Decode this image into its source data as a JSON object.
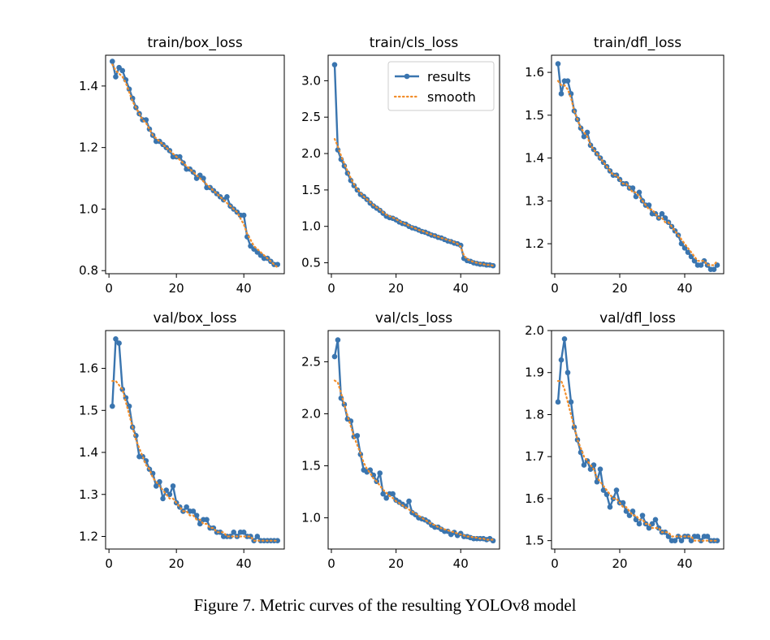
{
  "figure": {
    "caption": "Figure 7.  Metric curves of the resulting YOLOv8 model"
  },
  "colors": {
    "results": "#3a75af",
    "smooth": "#f28e2b",
    "axis": "#000000"
  },
  "legend": {
    "labels": [
      "results",
      "smooth"
    ],
    "location": "top-right",
    "panel": 1
  },
  "chart_data": [
    {
      "type": "line",
      "title": "train/box_loss",
      "xlim": [
        -1,
        52
      ],
      "ylim": [
        0.79,
        1.5
      ],
      "xticks": [
        0,
        20,
        40
      ],
      "yticks": [
        0.8,
        1.0,
        1.2,
        1.4
      ],
      "ytick_labels": [
        "0.8",
        "1.0",
        "1.2",
        "1.4"
      ],
      "x_start": 1,
      "series": [
        {
          "name": "results",
          "values": [
            1.48,
            1.43,
            1.46,
            1.45,
            1.42,
            1.39,
            1.36,
            1.33,
            1.31,
            1.29,
            1.29,
            1.26,
            1.24,
            1.22,
            1.22,
            1.21,
            1.2,
            1.19,
            1.17,
            1.17,
            1.17,
            1.15,
            1.13,
            1.13,
            1.12,
            1.1,
            1.11,
            1.1,
            1.07,
            1.07,
            1.06,
            1.05,
            1.04,
            1.03,
            1.04,
            1.01,
            1.0,
            0.99,
            0.98,
            0.98,
            0.91,
            0.88,
            0.87,
            0.86,
            0.85,
            0.84,
            0.84,
            0.83,
            0.82,
            0.82
          ]
        },
        {
          "name": "smooth",
          "values": [
            1.47,
            1.45,
            1.44,
            1.43,
            1.41,
            1.38,
            1.35,
            1.33,
            1.31,
            1.29,
            1.28,
            1.26,
            1.24,
            1.23,
            1.22,
            1.21,
            1.2,
            1.19,
            1.18,
            1.17,
            1.16,
            1.15,
            1.14,
            1.13,
            1.12,
            1.11,
            1.1,
            1.09,
            1.08,
            1.07,
            1.06,
            1.05,
            1.04,
            1.03,
            1.02,
            1.01,
            1.0,
            0.99,
            0.97,
            0.95,
            0.92,
            0.9,
            0.88,
            0.87,
            0.86,
            0.85,
            0.84,
            0.83,
            0.82,
            0.81
          ]
        }
      ]
    },
    {
      "type": "line",
      "title": "train/cls_loss",
      "xlim": [
        -1,
        52
      ],
      "ylim": [
        0.35,
        3.35
      ],
      "xticks": [
        0,
        20,
        40
      ],
      "yticks": [
        0.5,
        1.0,
        1.5,
        2.0,
        2.5,
        3.0
      ],
      "ytick_labels": [
        "0.5",
        "1.0",
        "1.5",
        "2.0",
        "2.5",
        "3.0"
      ],
      "x_start": 1,
      "series": [
        {
          "name": "results",
          "values": [
            3.22,
            2.05,
            1.92,
            1.83,
            1.73,
            1.63,
            1.56,
            1.5,
            1.44,
            1.41,
            1.37,
            1.32,
            1.28,
            1.25,
            1.22,
            1.18,
            1.14,
            1.12,
            1.11,
            1.09,
            1.06,
            1.04,
            1.03,
            1.0,
            0.98,
            0.97,
            0.95,
            0.93,
            0.92,
            0.9,
            0.88,
            0.87,
            0.85,
            0.84,
            0.82,
            0.8,
            0.79,
            0.77,
            0.76,
            0.74,
            0.56,
            0.53,
            0.52,
            0.5,
            0.49,
            0.48,
            0.48,
            0.47,
            0.47,
            0.46
          ]
        },
        {
          "name": "smooth",
          "values": [
            2.2,
            2.1,
            1.97,
            1.86,
            1.76,
            1.66,
            1.58,
            1.51,
            1.46,
            1.41,
            1.37,
            1.33,
            1.29,
            1.26,
            1.23,
            1.19,
            1.16,
            1.14,
            1.12,
            1.1,
            1.07,
            1.05,
            1.03,
            1.01,
            0.99,
            0.97,
            0.95,
            0.94,
            0.92,
            0.9,
            0.89,
            0.87,
            0.86,
            0.84,
            0.83,
            0.81,
            0.8,
            0.78,
            0.76,
            0.72,
            0.6,
            0.55,
            0.53,
            0.51,
            0.5,
            0.49,
            0.48,
            0.47,
            0.47,
            0.46
          ]
        }
      ]
    },
    {
      "type": "line",
      "title": "train/dfl_loss",
      "xlim": [
        -1,
        52
      ],
      "ylim": [
        1.13,
        1.64
      ],
      "xticks": [
        0,
        20,
        40
      ],
      "yticks": [
        1.2,
        1.3,
        1.4,
        1.5,
        1.6
      ],
      "ytick_labels": [
        "1.2",
        "1.3",
        "1.4",
        "1.5",
        "1.6"
      ],
      "x_start": 1,
      "series": [
        {
          "name": "results",
          "values": [
            1.62,
            1.55,
            1.58,
            1.58,
            1.55,
            1.51,
            1.49,
            1.47,
            1.45,
            1.46,
            1.43,
            1.42,
            1.41,
            1.4,
            1.39,
            1.38,
            1.37,
            1.36,
            1.36,
            1.35,
            1.34,
            1.34,
            1.33,
            1.33,
            1.31,
            1.32,
            1.3,
            1.29,
            1.29,
            1.27,
            1.27,
            1.26,
            1.27,
            1.26,
            1.25,
            1.24,
            1.23,
            1.22,
            1.2,
            1.19,
            1.18,
            1.17,
            1.16,
            1.15,
            1.15,
            1.16,
            1.15,
            1.14,
            1.14,
            1.15
          ]
        },
        {
          "name": "smooth",
          "values": [
            1.58,
            1.57,
            1.57,
            1.56,
            1.54,
            1.51,
            1.49,
            1.47,
            1.46,
            1.45,
            1.43,
            1.42,
            1.41,
            1.4,
            1.39,
            1.38,
            1.37,
            1.36,
            1.36,
            1.35,
            1.34,
            1.34,
            1.33,
            1.32,
            1.32,
            1.31,
            1.3,
            1.29,
            1.28,
            1.28,
            1.27,
            1.26,
            1.26,
            1.25,
            1.25,
            1.24,
            1.23,
            1.22,
            1.21,
            1.2,
            1.19,
            1.18,
            1.17,
            1.16,
            1.16,
            1.16,
            1.15,
            1.15,
            1.15,
            1.16
          ]
        }
      ]
    },
    {
      "type": "line",
      "title": "val/box_loss",
      "xlim": [
        -1,
        52
      ],
      "ylim": [
        1.17,
        1.69
      ],
      "xticks": [
        0,
        20,
        40
      ],
      "yticks": [
        1.2,
        1.3,
        1.4,
        1.5,
        1.6
      ],
      "ytick_labels": [
        "1.2",
        "1.3",
        "1.4",
        "1.5",
        "1.6"
      ],
      "x_start": 1,
      "series": [
        {
          "name": "results",
          "values": [
            1.51,
            1.67,
            1.66,
            1.55,
            1.53,
            1.51,
            1.46,
            1.44,
            1.39,
            1.39,
            1.38,
            1.36,
            1.35,
            1.32,
            1.33,
            1.29,
            1.31,
            1.3,
            1.32,
            1.28,
            1.27,
            1.26,
            1.27,
            1.26,
            1.26,
            1.25,
            1.23,
            1.24,
            1.24,
            1.22,
            1.22,
            1.21,
            1.21,
            1.2,
            1.2,
            1.2,
            1.21,
            1.2,
            1.21,
            1.21,
            1.2,
            1.2,
            1.19,
            1.2,
            1.19,
            1.19,
            1.19,
            1.19,
            1.19,
            1.19
          ]
        },
        {
          "name": "smooth",
          "values": [
            1.57,
            1.57,
            1.56,
            1.55,
            1.52,
            1.49,
            1.46,
            1.43,
            1.41,
            1.39,
            1.37,
            1.36,
            1.34,
            1.33,
            1.32,
            1.31,
            1.3,
            1.29,
            1.29,
            1.28,
            1.27,
            1.26,
            1.26,
            1.25,
            1.25,
            1.24,
            1.24,
            1.23,
            1.23,
            1.22,
            1.22,
            1.21,
            1.21,
            1.21,
            1.2,
            1.2,
            1.2,
            1.2,
            1.2,
            1.2,
            1.2,
            1.2,
            1.19,
            1.19,
            1.19,
            1.19,
            1.19,
            1.19,
            1.19,
            1.19
          ]
        }
      ]
    },
    {
      "type": "line",
      "title": "val/cls_loss",
      "xlim": [
        -1,
        52
      ],
      "ylim": [
        0.7,
        2.8
      ],
      "xticks": [
        0,
        20,
        40
      ],
      "yticks": [
        1.0,
        1.5,
        2.0,
        2.5
      ],
      "ytick_labels": [
        "1.0",
        "1.5",
        "2.0",
        "2.5"
      ],
      "x_start": 1,
      "series": [
        {
          "name": "results",
          "values": [
            2.55,
            2.71,
            2.15,
            2.09,
            1.95,
            1.93,
            1.78,
            1.79,
            1.61,
            1.46,
            1.44,
            1.46,
            1.41,
            1.35,
            1.43,
            1.23,
            1.19,
            1.23,
            1.23,
            1.17,
            1.15,
            1.13,
            1.11,
            1.16,
            1.05,
            1.03,
            1.0,
            0.99,
            0.98,
            0.96,
            0.93,
            0.91,
            0.91,
            0.89,
            0.87,
            0.87,
            0.84,
            0.86,
            0.83,
            0.85,
            0.82,
            0.82,
            0.81,
            0.8,
            0.8,
            0.8,
            0.8,
            0.79,
            0.8,
            0.78
          ]
        },
        {
          "name": "smooth",
          "values": [
            2.32,
            2.3,
            2.2,
            2.09,
            1.98,
            1.88,
            1.78,
            1.7,
            1.62,
            1.53,
            1.47,
            1.43,
            1.38,
            1.35,
            1.31,
            1.27,
            1.24,
            1.21,
            1.19,
            1.16,
            1.14,
            1.12,
            1.1,
            1.08,
            1.06,
            1.04,
            1.02,
            1.0,
            0.98,
            0.96,
            0.94,
            0.93,
            0.91,
            0.9,
            0.89,
            0.88,
            0.87,
            0.86,
            0.85,
            0.84,
            0.83,
            0.82,
            0.82,
            0.81,
            0.81,
            0.8,
            0.8,
            0.79,
            0.79,
            0.79
          ]
        }
      ]
    },
    {
      "type": "line",
      "title": "val/dfl_loss",
      "xlim": [
        -1,
        52
      ],
      "ylim": [
        1.48,
        2.0
      ],
      "xticks": [
        0,
        20,
        40
      ],
      "yticks": [
        1.5,
        1.6,
        1.7,
        1.8,
        1.9,
        2.0
      ],
      "ytick_labels": [
        "1.5",
        "1.6",
        "1.7",
        "1.8",
        "1.9",
        "2.0"
      ],
      "x_start": 1,
      "series": [
        {
          "name": "results",
          "values": [
            1.83,
            1.93,
            1.98,
            1.9,
            1.83,
            1.77,
            1.74,
            1.71,
            1.68,
            1.69,
            1.67,
            1.68,
            1.64,
            1.67,
            1.62,
            1.61,
            1.58,
            1.6,
            1.62,
            1.59,
            1.59,
            1.57,
            1.56,
            1.57,
            1.55,
            1.54,
            1.56,
            1.54,
            1.53,
            1.54,
            1.55,
            1.53,
            1.52,
            1.52,
            1.51,
            1.5,
            1.5,
            1.51,
            1.5,
            1.51,
            1.51,
            1.5,
            1.51,
            1.51,
            1.5,
            1.51,
            1.51,
            1.5,
            1.5,
            1.5
          ]
        },
        {
          "name": "smooth",
          "values": [
            1.88,
            1.88,
            1.86,
            1.83,
            1.8,
            1.77,
            1.74,
            1.72,
            1.7,
            1.69,
            1.68,
            1.67,
            1.65,
            1.64,
            1.63,
            1.62,
            1.61,
            1.6,
            1.6,
            1.59,
            1.58,
            1.58,
            1.57,
            1.56,
            1.56,
            1.55,
            1.55,
            1.54,
            1.54,
            1.53,
            1.53,
            1.53,
            1.52,
            1.52,
            1.52,
            1.51,
            1.51,
            1.51,
            1.51,
            1.51,
            1.51,
            1.51,
            1.5,
            1.5,
            1.5,
            1.5,
            1.5,
            1.5,
            1.5,
            1.5
          ]
        }
      ]
    }
  ]
}
